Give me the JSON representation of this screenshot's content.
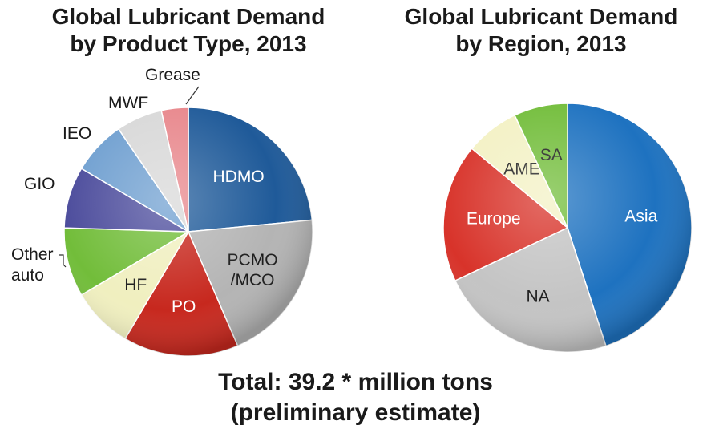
{
  "chart_data": [
    {
      "type": "pie",
      "title_lines": [
        "Global Lubricant Demand",
        "by Product Type, 2013"
      ],
      "slices": [
        {
          "label": "HDMO",
          "value": 23.5,
          "color": "#1f5a99",
          "label_color": "#ffffff"
        },
        {
          "label": "PCMO\n/MCO",
          "value": 20.0,
          "color": "#b4b4b4",
          "label_color": "#1a1a1a"
        },
        {
          "label": "PO",
          "value": 15.0,
          "color": "#c7281e",
          "label_color": "#ffffff"
        },
        {
          "label": "HF",
          "value": 8.0,
          "color": "#f0efbf",
          "label_color": "#1a1a1a"
        },
        {
          "label": "Other auto",
          "value": 9.0,
          "color": "#72bd3a",
          "label_color": "#1a1a1a"
        },
        {
          "label": "GIO",
          "value": 8.0,
          "color": "#4c4c9c",
          "label_color": "#1a1a1a"
        },
        {
          "label": "IEO",
          "value": 7.0,
          "color": "#6f9fd0",
          "label_color": "#1a1a1a"
        },
        {
          "label": "MWF",
          "value": 6.0,
          "color": "#d8d8d8",
          "label_color": "#1a1a1a"
        },
        {
          "label": "Grease",
          "value": 3.5,
          "color": "#e8878c",
          "label_color": "#1a1a1a"
        }
      ]
    },
    {
      "type": "pie",
      "title_lines": [
        "Global Lubricant Demand",
        "by Region, 2013"
      ],
      "slices": [
        {
          "label": "Asia",
          "value": 45.0,
          "color": "#1e72c0",
          "label_color": "#ffffff"
        },
        {
          "label": "NA",
          "value": 23.0,
          "color": "#c4c4c4",
          "label_color": "#1a1a1a"
        },
        {
          "label": "Europe",
          "value": 18.0,
          "color": "#d8332a",
          "label_color": "#ffffff"
        },
        {
          "label": "AME",
          "value": 7.0,
          "color": "#f3f1c4",
          "label_color": "#1a1a1a"
        },
        {
          "label": "SA",
          "value": 7.0,
          "color": "#72bd3a",
          "label_color": "#1a1a1a"
        }
      ]
    }
  ],
  "footer": {
    "line1": "Total: 39.2 * million tons",
    "line2": "(preliminary estimate)"
  }
}
